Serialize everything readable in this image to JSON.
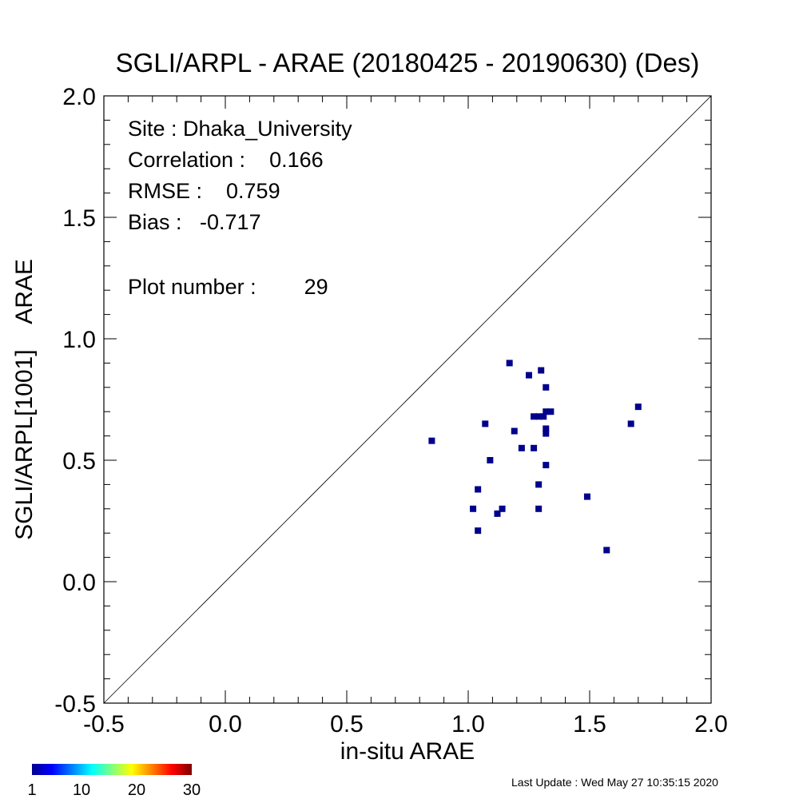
{
  "chart_data": {
    "type": "scatter",
    "title": "SGLI/ARPL - ARAE (20180425 - 20190630) (Des)",
    "xlabel": "in-situ ARAE",
    "ylabel": "SGLI/ARPL[1001]    ARAE",
    "xlim": [
      -0.5,
      2.0
    ],
    "ylim": [
      -0.5,
      2.0
    ],
    "xticks": [
      "-0.5",
      "0.0",
      "0.5",
      "1.0",
      "1.5",
      "2.0"
    ],
    "yticks": [
      "-0.5",
      "0.0",
      "0.5",
      "1.0",
      "1.5",
      "2.0"
    ],
    "reference_line": "y = x",
    "marker_color": "#00008b",
    "points": [
      {
        "x": 0.85,
        "y": 0.58
      },
      {
        "x": 1.02,
        "y": 0.3
      },
      {
        "x": 1.04,
        "y": 0.38
      },
      {
        "x": 1.04,
        "y": 0.21
      },
      {
        "x": 1.07,
        "y": 0.65
      },
      {
        "x": 1.09,
        "y": 0.5
      },
      {
        "x": 1.12,
        "y": 0.28
      },
      {
        "x": 1.14,
        "y": 0.3
      },
      {
        "x": 1.17,
        "y": 0.9
      },
      {
        "x": 1.19,
        "y": 0.62
      },
      {
        "x": 1.22,
        "y": 0.55
      },
      {
        "x": 1.25,
        "y": 0.85
      },
      {
        "x": 1.27,
        "y": 0.55
      },
      {
        "x": 1.27,
        "y": 0.68
      },
      {
        "x": 1.29,
        "y": 0.68
      },
      {
        "x": 1.29,
        "y": 0.4
      },
      {
        "x": 1.29,
        "y": 0.3
      },
      {
        "x": 1.3,
        "y": 0.87
      },
      {
        "x": 1.31,
        "y": 0.68
      },
      {
        "x": 1.32,
        "y": 0.8
      },
      {
        "x": 1.32,
        "y": 0.7
      },
      {
        "x": 1.32,
        "y": 0.63
      },
      {
        "x": 1.32,
        "y": 0.61
      },
      {
        "x": 1.32,
        "y": 0.48
      },
      {
        "x": 1.34,
        "y": 0.7
      },
      {
        "x": 1.49,
        "y": 0.35
      },
      {
        "x": 1.57,
        "y": 0.13
      },
      {
        "x": 1.67,
        "y": 0.65
      },
      {
        "x": 1.7,
        "y": 0.72
      }
    ],
    "colorbar": {
      "ticks": [
        "1",
        "10",
        "20",
        "30"
      ],
      "range": [
        1,
        30
      ]
    }
  },
  "stats": {
    "site": "Site : Dhaka_University",
    "correlation": "Correlation :    0.166",
    "rmse": "RMSE :    0.759",
    "bias": "Bias :   -0.717",
    "plot_number": "Plot number :        29"
  },
  "footer": {
    "last_update": "Last Update : Wed May 27 10:35:15 2020"
  }
}
